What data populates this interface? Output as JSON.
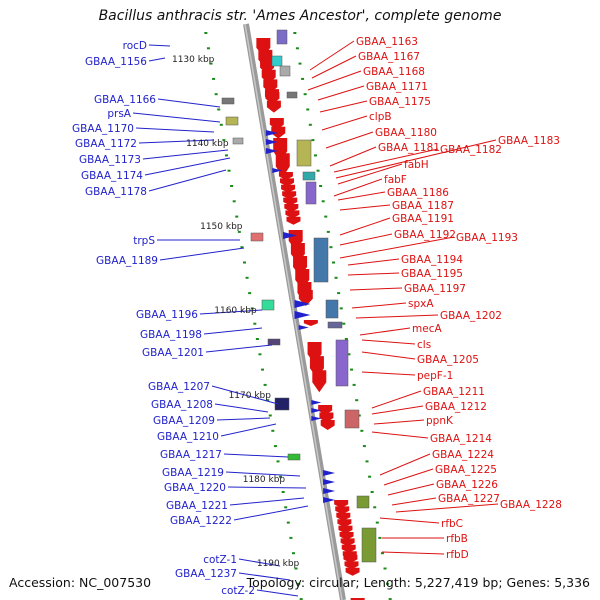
{
  "title": "Bacillus anthracis str. 'Ames Ancestor', complete genome",
  "footer": {
    "accession": "Accession: NC_007530",
    "info": "Topology: circular; Length: 5,227,419 bp; Genes: 5,336"
  },
  "colors": {
    "forward": "#2222cc",
    "reverse": "#dd1111",
    "backbone": "#999999",
    "tick": "#1a8a1a"
  },
  "scale_labels": [
    "1130 kbp",
    "1140 kbp",
    "1150 kbp",
    "1160 kbp",
    "1170 kbp",
    "1180 kbp",
    "1190 kbp"
  ],
  "forward_genes": [
    "rocD",
    "GBAA_1156",
    "GBAA_1166",
    "prsA",
    "GBAA_1170",
    "GBAA_1172",
    "GBAA_1173",
    "GBAA_1174",
    "GBAA_1178",
    "trpS",
    "GBAA_1189",
    "GBAA_1196",
    "GBAA_1198",
    "GBAA_1201",
    "GBAA_1207",
    "GBAA_1208",
    "GBAA_1209",
    "GBAA_1210",
    "GBAA_1217",
    "GBAA_1219",
    "GBAA_1220",
    "GBAA_1221",
    "GBAA_1222",
    "cotZ-1",
    "GBAA_1237",
    "cotZ-2"
  ],
  "reverse_genes": [
    "GBAA_1163",
    "GBAA_1167",
    "GBAA_1168",
    "GBAA_1171",
    "GBAA_1175",
    "clpB",
    "GBAA_1180",
    "GBAA_1181",
    "GBAA_1182",
    "GBAA_1183",
    "fabH",
    "fabF",
    "GBAA_1186",
    "GBAA_1187",
    "GBAA_1191",
    "GBAA_1192",
    "GBAA_1193",
    "GBAA_1194",
    "GBAA_1195",
    "GBAA_1197",
    "spxA",
    "GBAA_1202",
    "mecA",
    "cls",
    "GBAA_1205",
    "pepF-1",
    "GBAA_1211",
    "GBAA_1212",
    "ppnK",
    "GBAA_1214",
    "GBAA_1224",
    "GBAA_1225",
    "GBAA_1226",
    "GBAA_1227",
    "GBAA_1228",
    "rfbC",
    "rfbB",
    "rfbD"
  ]
}
